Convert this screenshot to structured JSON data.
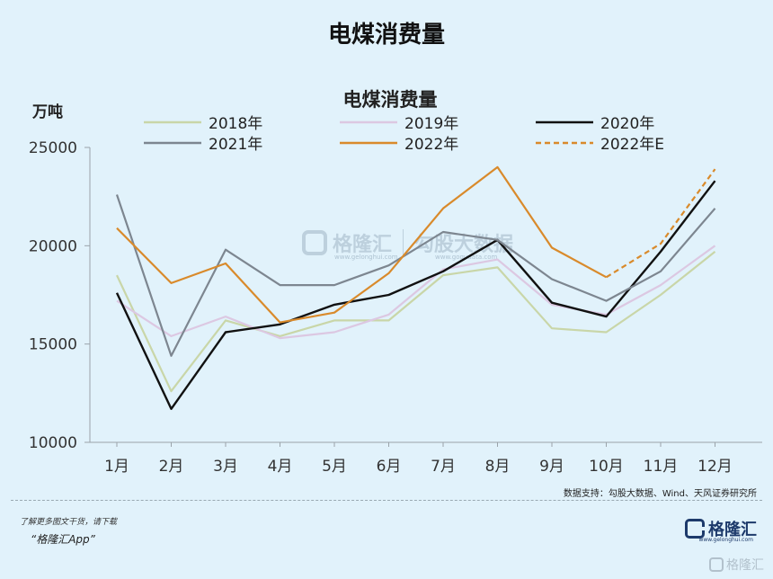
{
  "page": {
    "title": "电煤消费量"
  },
  "chart_data": {
    "type": "line",
    "title": "电煤消费量",
    "ylabel": "万吨",
    "xlabel": "",
    "categories": [
      "1月",
      "2月",
      "3月",
      "4月",
      "5月",
      "6月",
      "7月",
      "8月",
      "9月",
      "10月",
      "11月",
      "12月"
    ],
    "ylim": [
      10000,
      25000
    ],
    "yticks": [
      10000,
      15000,
      20000,
      25000
    ],
    "grid": false,
    "legend_position": "top",
    "series": [
      {
        "name": "2018年",
        "color": "#c9d6a8",
        "dashed": false,
        "values": [
          18500,
          12600,
          16200,
          15400,
          16200,
          16200,
          18500,
          18900,
          15800,
          15600,
          17500,
          19700
        ]
      },
      {
        "name": "2019年",
        "color": "#dcc8e2",
        "dashed": false,
        "values": [
          17200,
          15400,
          16400,
          15300,
          15600,
          16500,
          18800,
          19300,
          17000,
          16500,
          18000,
          20000
        ]
      },
      {
        "name": "2020年",
        "color": "#111111",
        "dashed": false,
        "values": [
          17600,
          11700,
          15600,
          16000,
          17000,
          17500,
          18700,
          20300,
          17100,
          16400,
          19700,
          23300
        ]
      },
      {
        "name": "2021年",
        "color": "#7d8690",
        "dashed": false,
        "values": [
          22600,
          14400,
          19800,
          18000,
          18000,
          19000,
          20700,
          20300,
          18300,
          17200,
          18700,
          21900
        ]
      },
      {
        "name": "2022年",
        "color": "#d98a2b",
        "dashed": false,
        "values": [
          20900,
          18100,
          19100,
          16100,
          16600,
          18600,
          21900,
          24000,
          19900,
          18400,
          null,
          null
        ]
      },
      {
        "name": "2022年E",
        "color": "#d98a2b",
        "dashed": true,
        "values": [
          null,
          null,
          null,
          null,
          null,
          null,
          null,
          null,
          null,
          18400,
          20100,
          23900
        ]
      }
    ]
  },
  "source": "数据支持：勾股大数据、Wind、天风证券研究所",
  "promo": {
    "line1": "了解更多图文干货，请下载",
    "line2": "“格隆汇App”"
  },
  "logo": {
    "name": "格隆汇",
    "url": "www.gelonghui.com"
  },
  "watermark": {
    "brand": "格隆汇",
    "brand_url": "www.gelonghui.com",
    "partner": "勾股大数据",
    "partner_url": "www.gogudata.com"
  }
}
